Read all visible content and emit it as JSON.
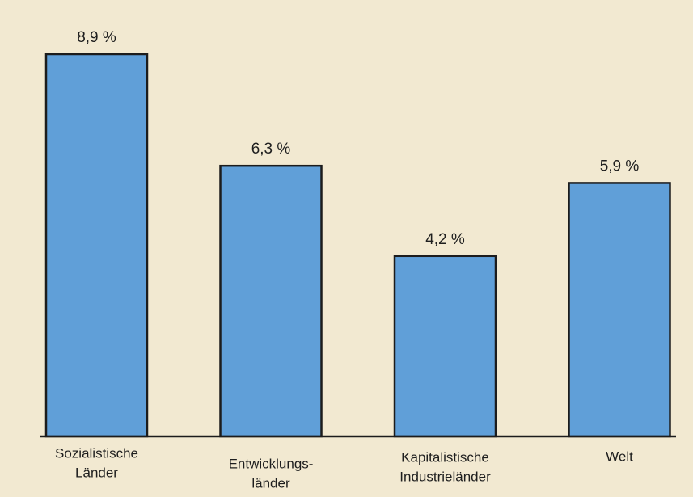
{
  "chart_data": {
    "type": "bar",
    "categories": [
      [
        "Sozialistische",
        "Länder"
      ],
      [
        "Entwicklungs-",
        "länder"
      ],
      [
        "Kapitalistische",
        "Industrieländer"
      ],
      [
        "Welt"
      ]
    ],
    "values": [
      8.9,
      6.3,
      4.2,
      5.9
    ],
    "value_labels": [
      "8,9 %",
      "6,3 %",
      "4,2 %",
      "5,9 %"
    ],
    "color": "#609fd8"
  }
}
